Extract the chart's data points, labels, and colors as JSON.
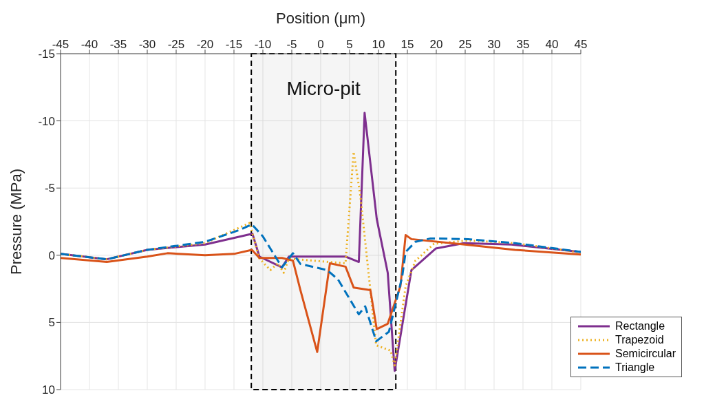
{
  "chart_data": {
    "type": "line",
    "xlabel": "Position (μm)",
    "ylabel": "Pressure (MPa)",
    "xlim": [
      -45,
      45
    ],
    "xticks": [
      -45,
      -40,
      -35,
      -30,
      -25,
      -20,
      -15,
      -10,
      -5,
      0,
      5,
      10,
      15,
      20,
      25,
      30,
      35,
      40,
      45
    ],
    "ylim": [
      10,
      -15
    ],
    "yticks": [
      -15,
      -10,
      -5,
      0,
      5,
      10
    ],
    "grid": true,
    "legend": "bottom right",
    "marker": "none",
    "bands": [
      {
        "axis": "x",
        "from": -12,
        "to": 13,
        "label": "Micro-pit",
        "color": "#000000"
      }
    ],
    "series": [
      {
        "name": "Rectangle",
        "color": "#7e2f8e",
        "line_style": "solid",
        "x": [
          -45,
          -37,
          -30,
          -20,
          -11.8,
          -10.6,
          -6.7,
          -5.5,
          4.3,
          6.6,
          7.6,
          9.7,
          11.6,
          12.8,
          15.7,
          19.9,
          24.8,
          33,
          45
        ],
        "values": [
          -0.1,
          0.3,
          -0.4,
          -0.8,
          -1.6,
          0.1,
          0.9,
          0.1,
          0.1,
          0.5,
          -10.6,
          -2.7,
          1.3,
          8.6,
          1.1,
          -0.5,
          -0.9,
          -0.8,
          -0.25
        ]
      },
      {
        "name": "Trapezoid",
        "color": "#edb120",
        "line_style": "dotted",
        "x": [
          -45,
          -37,
          -30,
          -20,
          -12.3,
          -10.6,
          -8.7,
          -7.4,
          -6.4,
          -5.5,
          4.3,
          5.7,
          6.9,
          9.6,
          12.1,
          12.8,
          14.7,
          16.4,
          19.6,
          25.5,
          33.6,
          45
        ],
        "values": [
          -0.1,
          0.3,
          -0.4,
          -0.9,
          -2.4,
          0.25,
          1.1,
          0.6,
          1.3,
          0.25,
          0.6,
          -7.7,
          -4.3,
          6.7,
          7.1,
          8.2,
          2.3,
          0.4,
          -0.85,
          -1.1,
          -0.9,
          -0.2
        ]
      },
      {
        "name": "Semicircular",
        "color": "#d95319",
        "line_style": "solid",
        "x": [
          -45,
          -37,
          -30,
          -26.5,
          -20,
          -15,
          -11.9,
          -10.6,
          -6.7,
          -4.8,
          -3.5,
          -0.6,
          1.6,
          4.3,
          5.7,
          8.6,
          9.7,
          11.6,
          13.8,
          14.7,
          15.7,
          23.8,
          33.6,
          45
        ],
        "values": [
          0.2,
          0.5,
          0.1,
          -0.15,
          0,
          -0.1,
          -0.4,
          0.2,
          0.2,
          0.4,
          2.6,
          7.2,
          0.6,
          0.85,
          2.4,
          2.6,
          5.5,
          5.1,
          2.3,
          -1.5,
          -1.2,
          -0.85,
          -0.4,
          -0.05
        ]
      },
      {
        "name": "Triangle",
        "color": "#0072bd",
        "line_style": "dashed",
        "x": [
          -45,
          -37,
          -30,
          -20,
          -13.9,
          -11.9,
          -10,
          -6.7,
          -4.8,
          -3.5,
          1.1,
          3,
          6.6,
          7.7,
          9.6,
          11.8,
          14.1,
          14.7,
          16.4,
          19,
          25.5,
          33.6,
          45
        ],
        "values": [
          -0.1,
          0.3,
          -0.4,
          -1,
          -1.9,
          -2.3,
          -1.4,
          0.9,
          -0.15,
          0.65,
          1.1,
          1.8,
          4.4,
          3.8,
          6.4,
          5.7,
          1.6,
          -0.25,
          -1,
          -1.25,
          -1.2,
          -0.9,
          -0.25
        ]
      }
    ]
  }
}
